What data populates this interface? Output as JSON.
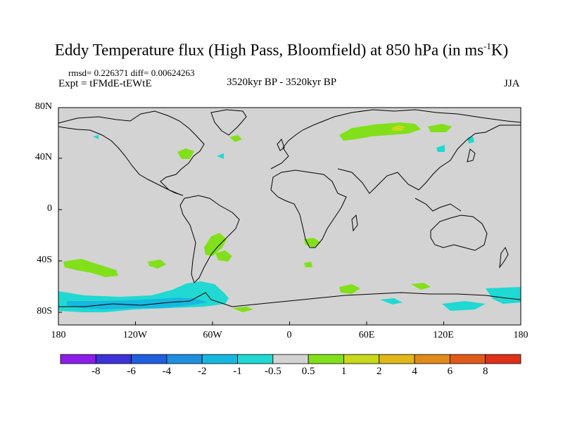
{
  "title": {
    "main": "Eddy Temperature flux (High Pass, Bloomfield) at 850 hPa (in ms",
    "sup": "-1",
    "end": "K)"
  },
  "stats": "rmsd= 0.226371  diff= 0.00624263",
  "expt": "Expt = tFMdE-tEWtE",
  "period": "3520kyr BP - 3520kyr BP",
  "season": "JJA",
  "map": {
    "background": "#d3d3d3",
    "lon_ticks": [
      "180",
      "120W",
      "60W",
      "0",
      "60E",
      "120E",
      "180"
    ],
    "lat_ticks": [
      "80N",
      "40N",
      "0",
      "40S",
      "80S"
    ]
  },
  "colorbar": {
    "colors": [
      "#8c1eea",
      "#3c32d8",
      "#1f5fe0",
      "#1f8fe0",
      "#17b8e0",
      "#1fd9d2",
      "#d3d3d3",
      "#82e01a",
      "#c8d81a",
      "#e0b81a",
      "#e08a1a",
      "#e05a1a",
      "#e0301a"
    ],
    "labels": [
      "-8",
      "-6",
      "-4",
      "-2",
      "-1",
      "-0.5",
      "0.5",
      "1",
      "2",
      "4",
      "6",
      "8"
    ]
  }
}
